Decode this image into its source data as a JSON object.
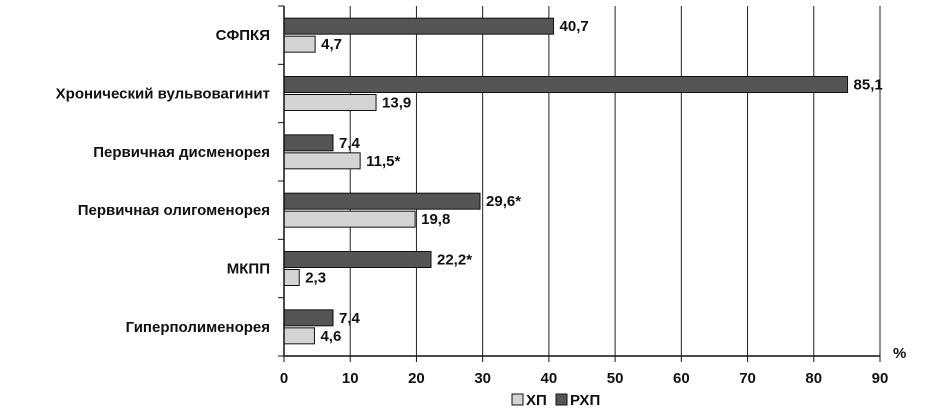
{
  "chart_data": {
    "type": "bar",
    "orientation": "horizontal",
    "categories": [
      "СФПКЯ",
      "Хронический вульвовагинит",
      "Первичная дисменорея",
      "Первичная олигоменорея",
      "МКПП",
      "Гиперполименорея"
    ],
    "series": [
      {
        "name": "РХП",
        "color": "#555555",
        "values": [
          40.7,
          85.1,
          7.4,
          29.6,
          22.2,
          7.4
        ],
        "labels": [
          "40,7",
          "85,1",
          "7,4",
          "29,6*",
          "22,2*",
          "7,4"
        ]
      },
      {
        "name": "ХП",
        "color": "#d4d4d4",
        "values": [
          4.7,
          13.9,
          11.5,
          19.8,
          2.3,
          4.6
        ],
        "labels": [
          "4,7",
          "13,9",
          "11,5*",
          "19,8",
          "2,3",
          "4,6"
        ]
      }
    ],
    "xlim": [
      0,
      90
    ],
    "xticks": [
      "0",
      "10",
      "20",
      "30",
      "40",
      "50",
      "60",
      "70",
      "80",
      "90"
    ],
    "xunit": "%",
    "grid": true,
    "legend_position": "bottom",
    "legend_order": [
      "ХП",
      "РХП"
    ]
  }
}
